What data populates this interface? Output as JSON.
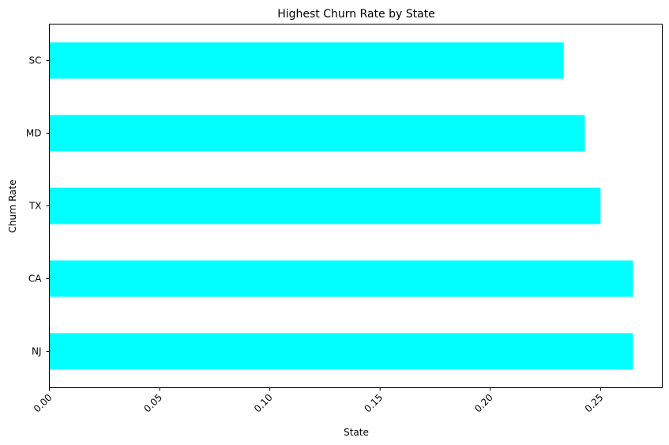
{
  "chart_data": {
    "type": "bar",
    "orientation": "horizontal",
    "title": "Highest Churn Rate by State",
    "xlabel": "State",
    "ylabel": "Churn Rate",
    "categories": [
      "NJ",
      "CA",
      "TX",
      "MD",
      "SC"
    ],
    "values": [
      0.2647,
      0.2647,
      0.25,
      0.2429,
      0.2333
    ],
    "xlim": [
      0,
      0.278
    ],
    "xticks": [
      "0.00",
      "0.05",
      "0.10",
      "0.15",
      "0.20",
      "0.25"
    ],
    "xtick_values": [
      0,
      0.05,
      0.1,
      0.15,
      0.2,
      0.25
    ],
    "xtick_rotation": 45,
    "bar_color": "#00ffff",
    "grid": false,
    "legend": "none"
  }
}
